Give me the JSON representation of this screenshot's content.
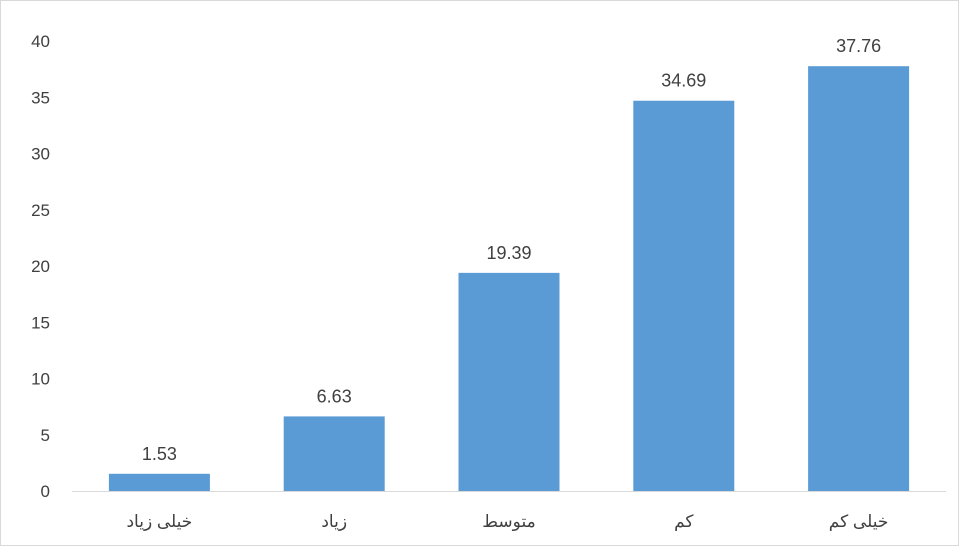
{
  "chart_data": {
    "type": "bar",
    "categories": [
      "خیلی زیاد",
      "زیاد",
      "متوسط",
      "کم",
      "خیلی کم"
    ],
    "values": [
      1.53,
      6.63,
      19.39,
      34.69,
      37.76
    ],
    "data_labels": [
      "1.53",
      "6.63",
      "19.39",
      "34.69",
      "37.76"
    ],
    "y_ticks": [
      "0",
      "5",
      "10",
      "15",
      "20",
      "25",
      "30",
      "35",
      "40"
    ],
    "ylim": [
      0,
      40
    ],
    "tick_step": 5,
    "grid": false,
    "bar_color": "#5B9BD5",
    "axis_color": "#D9D9D9",
    "text_color": "#404040"
  }
}
